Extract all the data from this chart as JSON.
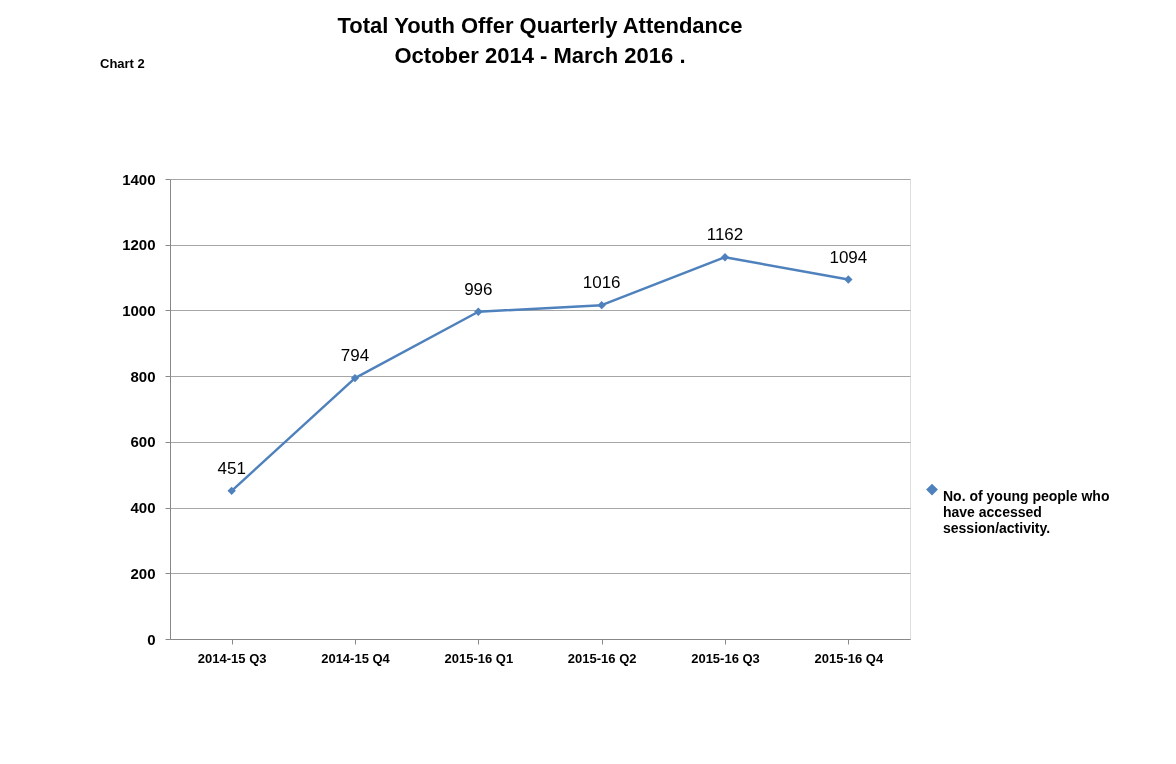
{
  "chart_data": {
    "type": "line",
    "title": "Total Youth Offer Quarterly Attendance\nOctober 2014 - March 2016 .",
    "annotations": [
      "Chart 2"
    ],
    "categories": [
      "2014-15 Q3",
      "2014-15 Q4",
      "2015-16 Q1",
      "2015-16 Q2",
      "2015-16 Q3",
      "2015-16 Q4"
    ],
    "series": [
      {
        "name": "No. of young people who have accessed session/activity.",
        "color": "#4f81bd",
        "values": [
          451,
          794,
          996,
          1016,
          1162,
          1094
        ]
      }
    ],
    "ylim": [
      0,
      1400
    ],
    "yticks": [
      0,
      200,
      400,
      600,
      800,
      1000,
      1200,
      1400
    ],
    "grid": "y",
    "legend": "right",
    "marker": "diamond",
    "line_style": "solid",
    "data_labels": true
  }
}
